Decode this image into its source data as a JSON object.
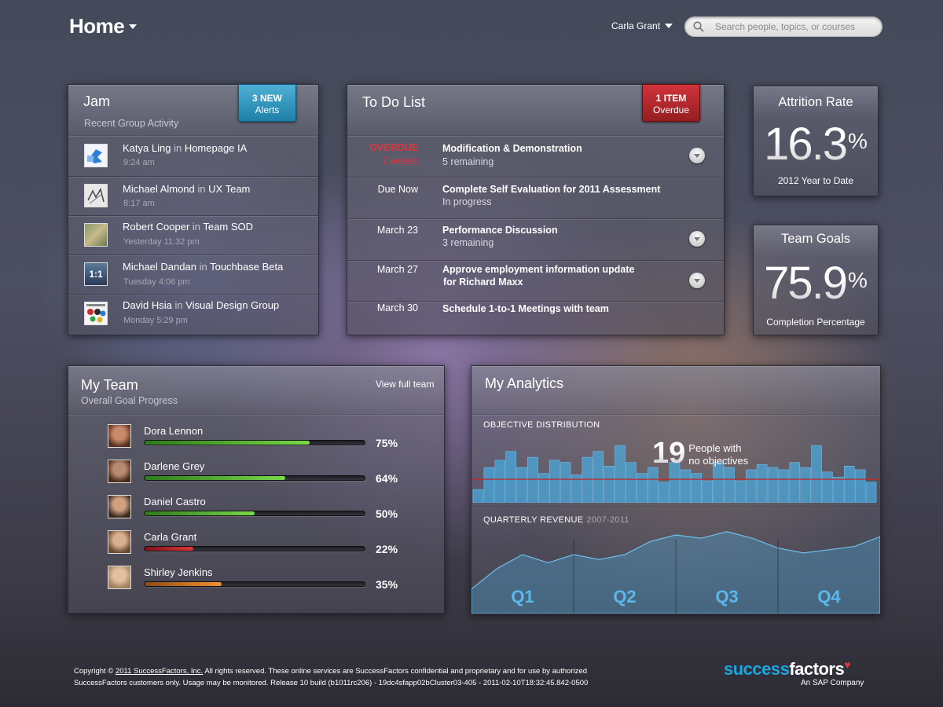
{
  "header": {
    "title": "Home",
    "user": "Carla Grant",
    "search_placeholder": "Search people, topics, or courses"
  },
  "jam": {
    "title": "Jam",
    "subtitle": "Recent Group Activity",
    "badge_count": "3 NEW",
    "badge_label": "Alerts",
    "items": [
      {
        "name": "Katya Ling",
        "sep": "in",
        "group": "Homepage IA",
        "time": "9:24 am",
        "thumb": "blue-logo"
      },
      {
        "name": "Michael Almond",
        "sep": "in",
        "group": "UX Team",
        "time": "8:17 am",
        "thumb": "sketch"
      },
      {
        "name": "Robert Cooper",
        "sep": "in",
        "group": "Team SOD",
        "time": "Yesterday 11:32 pm",
        "thumb": "photo"
      },
      {
        "name": "Michael Dandan",
        "sep": "in",
        "group": "Touchbase Beta",
        "time": "Tuesday 4:06 pm",
        "thumb": "1:1"
      },
      {
        "name": "David Hsia",
        "sep": "in",
        "group": "Visual Design Group",
        "time": "Monday 5:29 pm",
        "thumb": "color-dots"
      }
    ]
  },
  "todo": {
    "title": "To Do List",
    "badge_count": "1 ITEM",
    "badge_label": "Overdue",
    "items": [
      {
        "date": "OVERDUE",
        "date2": "2 weeks",
        "title": "Modification & Demonstration",
        "sub": "5 remaining"
      },
      {
        "date": "Due Now",
        "title": "Complete Self Evaluation for 2011 Assessment",
        "sub": "In progress"
      },
      {
        "date": "March 23",
        "title": "Performance Discussion",
        "sub": "3 remaining"
      },
      {
        "date": "March 27",
        "title": "Approve employment information update",
        "sub": "for Richard Maxx"
      },
      {
        "date": "March 30",
        "title": "Schedule 1-to-1 Meetings with team"
      }
    ]
  },
  "attrition": {
    "title": "Attrition Rate",
    "value": "16.3",
    "unit": "%",
    "sub": "2012 Year to Date"
  },
  "goals": {
    "title": "Team Goals",
    "value": "75.9",
    "unit": "%",
    "sub": "Completion Percentage"
  },
  "team": {
    "title": "My Team",
    "subtitle": "Overall Goal Progress",
    "link": "View full team",
    "members": [
      {
        "name": "Dora Lennon",
        "progress": 75,
        "label": "75%",
        "color": "green"
      },
      {
        "name": "Darlene Grey",
        "progress": 64,
        "label": "64%",
        "color": "green"
      },
      {
        "name": "Daniel Castro",
        "progress": 50,
        "label": "50%",
        "color": "green"
      },
      {
        "name": "Carla Grant",
        "progress": 22,
        "label": "22%",
        "color": "red"
      },
      {
        "name": "Shirley Jenkins",
        "progress": 35,
        "label": "35%",
        "color": "orange"
      }
    ]
  },
  "analytics": {
    "title": "My Analytics",
    "dist_label": "OBJECTIVE DISTRIBUTION",
    "callout_number": "19",
    "callout_line1": "People with",
    "callout_line2": "no objectives",
    "rev_label": "QUARTERLY REVENUE",
    "rev_years": "2007-2011",
    "quarters": [
      "Q1",
      "Q2",
      "Q3",
      "Q4"
    ],
    "accent": "#4aa8dc"
  },
  "chart_data": [
    {
      "type": "bar",
      "title": "OBJECTIVE DISTRIBUTION",
      "values": [
        18,
        48,
        58,
        70,
        48,
        62,
        40,
        58,
        55,
        38,
        62,
        70,
        50,
        78,
        55,
        40,
        48,
        28,
        55,
        45,
        40,
        30,
        55,
        48,
        30,
        45,
        52,
        48,
        45,
        55,
        48,
        78,
        42,
        35,
        50,
        45,
        28
      ],
      "reference_line": 32,
      "ylim": [
        0,
        90
      ]
    },
    {
      "type": "area",
      "title": "QUARTERLY REVENUE",
      "subtitle": "2007-2011",
      "x": [
        0,
        0.5,
        1,
        1.5,
        2,
        2.5,
        3,
        3.5,
        4,
        4.5,
        5,
        5.5,
        6,
        6.5,
        7,
        7.5,
        8
      ],
      "values": [
        30,
        55,
        72,
        62,
        72,
        66,
        72,
        88,
        96,
        92,
        100,
        92,
        80,
        74,
        78,
        82,
        94
      ],
      "categories": [
        "Q1",
        "Q2",
        "Q3",
        "Q4"
      ],
      "ylim": [
        0,
        120
      ]
    }
  ],
  "footer": {
    "prefix": "Copyright ©",
    "link": "2011 SuccessFactors, Inc.",
    "line1": "All rights reserved. These online services are SuccessFactors confidential and proprietary and for use by authorized",
    "line2": "SuccessFactors customers only. Usage may be monitored. Release 10 build (b1011rc206) - 19dc4sfapp02bCluster03-405 - 2011-02-10T18:32:45.842-0500"
  },
  "logo": {
    "part1": "success",
    "part2": "factors",
    "sub": "An SAP Company"
  }
}
